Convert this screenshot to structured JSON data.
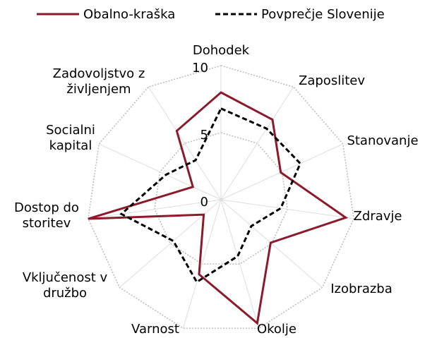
{
  "chart_data": {
    "type": "radar",
    "categories": [
      "Dohodek",
      "Zaposlitev",
      "Stanovanje",
      "Zdravje",
      "Izobrazba",
      "Okolje",
      "Varnost",
      "Vključenost v družbo",
      "Dostop do storitev",
      "Socialni kapital",
      "Zadovoljstvo z življenjem"
    ],
    "series": [
      {
        "name": "Obalno-kraška",
        "color": "#8b1a2b",
        "dash": false,
        "values": [
          8.0,
          7.1,
          4.9,
          9.4,
          4.9,
          9.6,
          5.8,
          1.7,
          10.0,
          2.3,
          6.1
        ]
      },
      {
        "name": "Povprečje Slovenije",
        "color": "#000000",
        "dash": true,
        "values": [
          6.8,
          6.3,
          6.5,
          4.5,
          3.0,
          4.4,
          6.4,
          4.7,
          7.5,
          4.5,
          3.5
        ]
      }
    ],
    "ylim": [
      0,
      10
    ],
    "yticks": [
      0,
      5,
      10
    ],
    "grid": true
  }
}
